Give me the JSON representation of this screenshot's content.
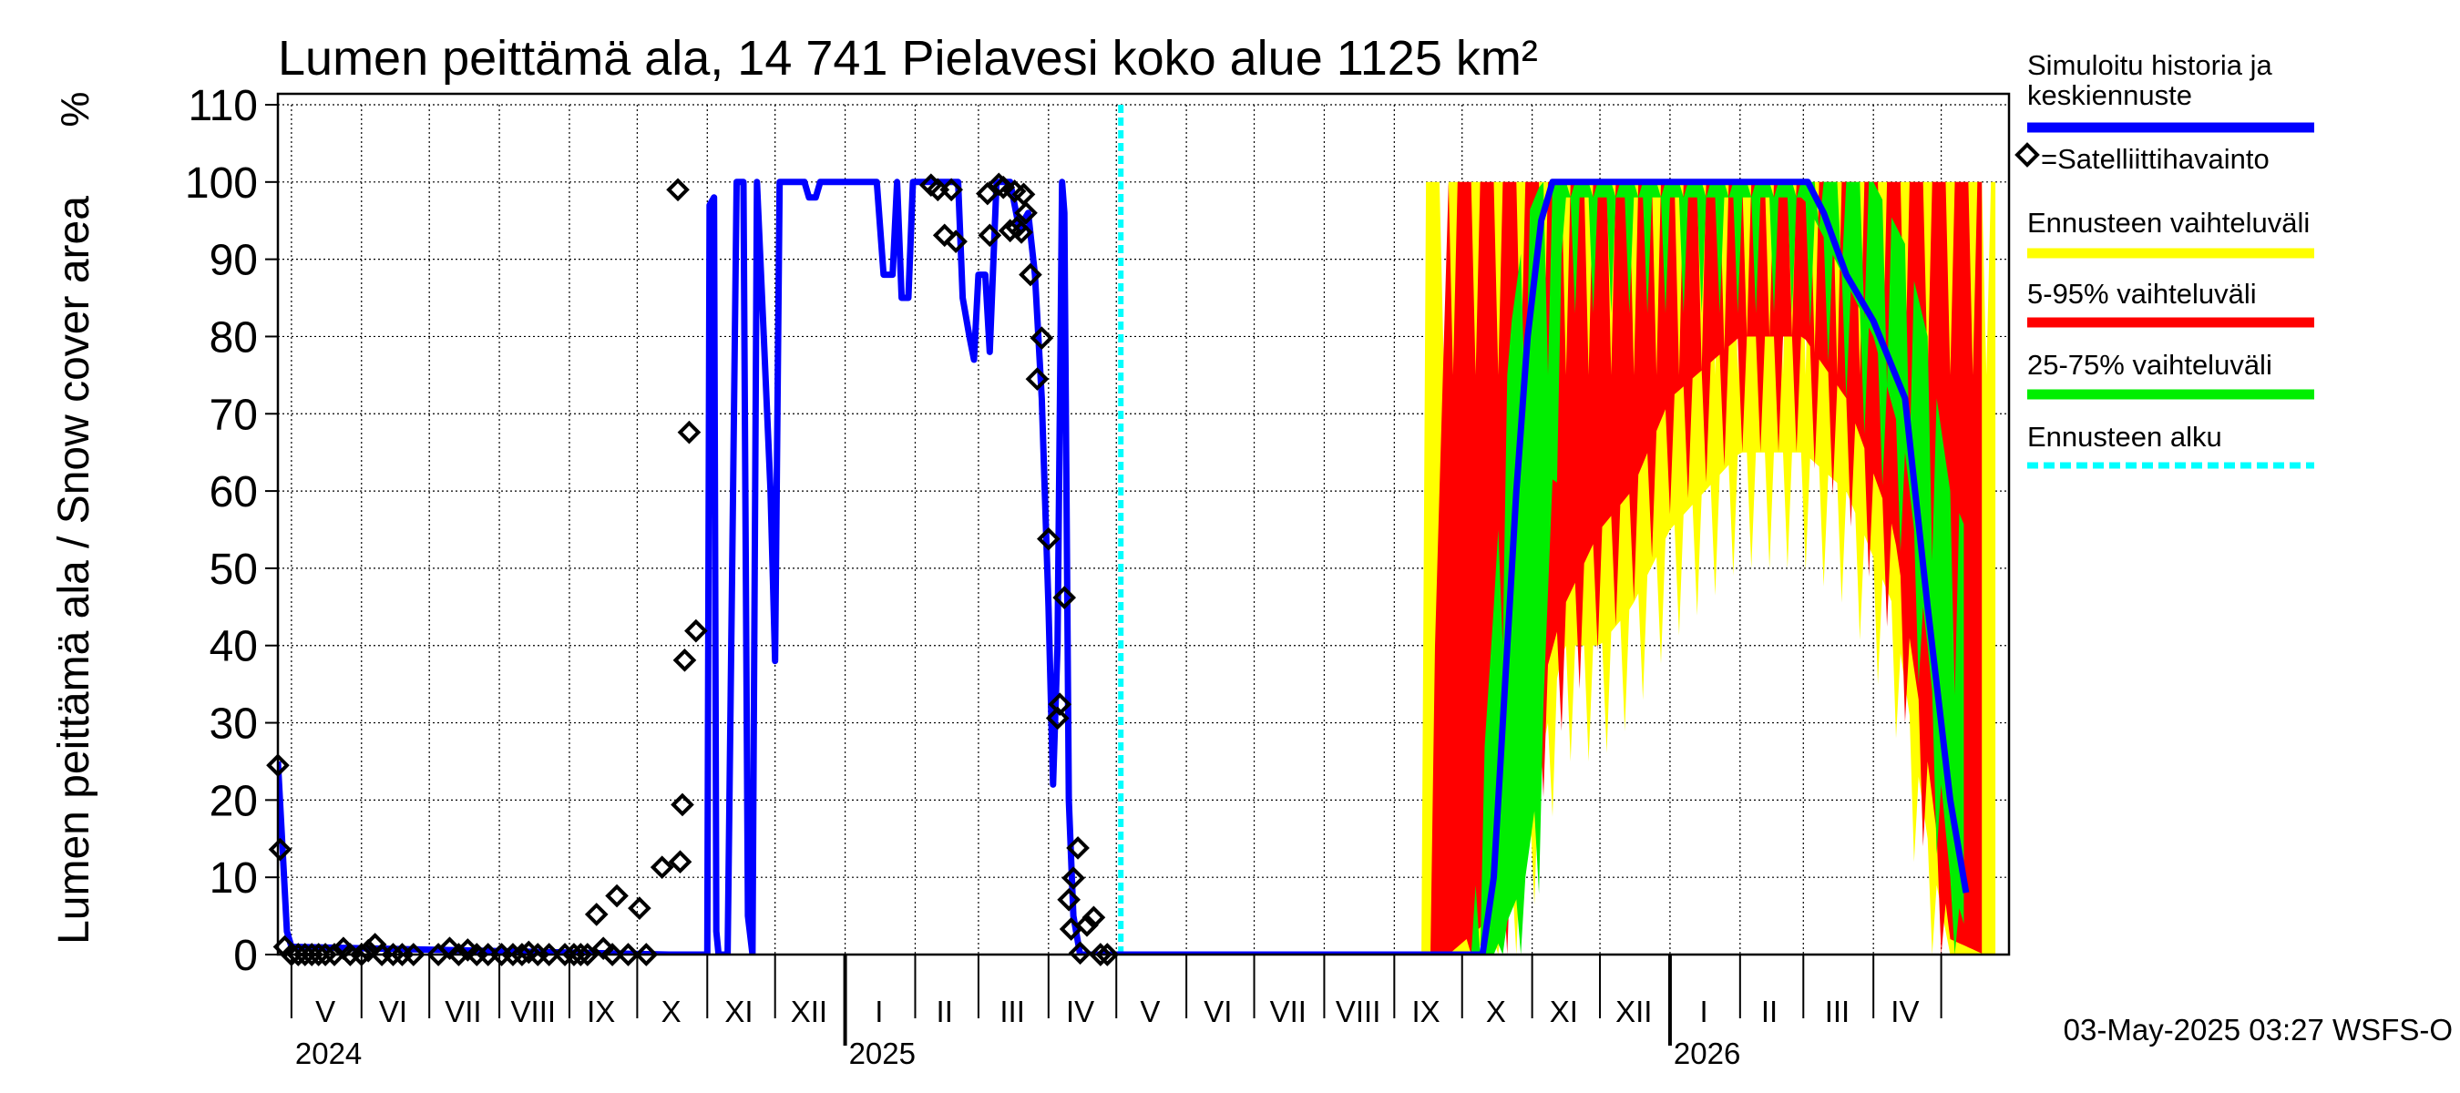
{
  "chart_data": {
    "type": "line",
    "title": "Lumen peittämä ala, 14 741 Pielavesi koko alue 1125 km²",
    "ylabel": "Lumen peittämä ala / Snow cover area",
    "yunit": "%",
    "ylim": [
      0,
      110
    ],
    "yticks": [
      "0",
      "10",
      "20",
      "30",
      "40",
      "50",
      "60",
      "70",
      "80",
      "90",
      "100",
      "110"
    ],
    "xlim": [
      "2024-04-25",
      "2026-05-31"
    ],
    "month_labels": [
      {
        "date": "2024-05-16",
        "label": "V"
      },
      {
        "date": "2024-06-15",
        "label": "VI"
      },
      {
        "date": "2024-07-16",
        "label": "VII"
      },
      {
        "date": "2024-08-16",
        "label": "VIII"
      },
      {
        "date": "2024-09-15",
        "label": "IX"
      },
      {
        "date": "2024-10-16",
        "label": "X"
      },
      {
        "date": "2024-11-15",
        "label": "XI"
      },
      {
        "date": "2024-12-16",
        "label": "XII"
      },
      {
        "date": "2025-01-16",
        "label": "I"
      },
      {
        "date": "2025-02-14",
        "label": "II"
      },
      {
        "date": "2025-03-16",
        "label": "III"
      },
      {
        "date": "2025-04-15",
        "label": "IV"
      },
      {
        "date": "2025-05-16",
        "label": "V"
      },
      {
        "date": "2025-06-15",
        "label": "VI"
      },
      {
        "date": "2025-07-16",
        "label": "VII"
      },
      {
        "date": "2025-08-16",
        "label": "VIII"
      },
      {
        "date": "2025-09-15",
        "label": "IX"
      },
      {
        "date": "2025-10-16",
        "label": "X"
      },
      {
        "date": "2025-11-15",
        "label": "XI"
      },
      {
        "date": "2025-12-16",
        "label": "XII"
      },
      {
        "date": "2026-01-16",
        "label": "I"
      },
      {
        "date": "2026-02-14",
        "label": "II"
      },
      {
        "date": "2026-03-16",
        "label": "III"
      },
      {
        "date": "2026-04-15",
        "label": "IV"
      }
    ],
    "year_labels": [
      {
        "date": "2024-05-01",
        "label": "2024"
      },
      {
        "date": "2025-01-01",
        "label": "2025"
      },
      {
        "date": "2026-01-01",
        "label": "2026"
      }
    ],
    "forecast_start": "2025-05-03",
    "series": [
      {
        "name": "Simuloitu historia ja keskiennuste",
        "color": "#0000ff",
        "points": [
          [
            "2024-04-25",
            25
          ],
          [
            "2024-04-27",
            14
          ],
          [
            "2024-04-29",
            3
          ],
          [
            "2024-05-01",
            1
          ],
          [
            "2024-10-15",
            0
          ],
          [
            "2024-11-01",
            0
          ],
          [
            "2024-11-02",
            97
          ],
          [
            "2024-11-04",
            98
          ],
          [
            "2024-11-05",
            3
          ],
          [
            "2024-11-06",
            0
          ],
          [
            "2024-11-10",
            0
          ],
          [
            "2024-11-12",
            50
          ],
          [
            "2024-11-14",
            100
          ],
          [
            "2024-11-17",
            100
          ],
          [
            "2024-11-19",
            5
          ],
          [
            "2024-11-21",
            0
          ],
          [
            "2024-11-23",
            100
          ],
          [
            "2024-11-26",
            80
          ],
          [
            "2024-11-29",
            60
          ],
          [
            "2024-12-01",
            38
          ],
          [
            "2024-12-03",
            100
          ],
          [
            "2024-12-10",
            100
          ],
          [
            "2024-12-14",
            100
          ],
          [
            "2024-12-16",
            98
          ],
          [
            "2024-12-19",
            98
          ],
          [
            "2024-12-21",
            100
          ],
          [
            "2025-01-15",
            100
          ],
          [
            "2025-01-18",
            88
          ],
          [
            "2025-01-22",
            88
          ],
          [
            "2025-01-24",
            100
          ],
          [
            "2025-01-26",
            85
          ],
          [
            "2025-01-29",
            85
          ],
          [
            "2025-01-31",
            100
          ],
          [
            "2025-02-20",
            100
          ],
          [
            "2025-02-22",
            85
          ],
          [
            "2025-02-25",
            80
          ],
          [
            "2025-02-27",
            77
          ],
          [
            "2025-03-01",
            88
          ],
          [
            "2025-03-04",
            88
          ],
          [
            "2025-03-06",
            78
          ],
          [
            "2025-03-09",
            100
          ],
          [
            "2025-03-15",
            100
          ],
          [
            "2025-03-19",
            94
          ],
          [
            "2025-03-23",
            96
          ],
          [
            "2025-03-26",
            88
          ],
          [
            "2025-03-29",
            72
          ],
          [
            "2025-04-01",
            45
          ],
          [
            "2025-04-03",
            22
          ],
          [
            "2025-04-05",
            40
          ],
          [
            "2025-04-07",
            100
          ],
          [
            "2025-04-08",
            96
          ],
          [
            "2025-04-10",
            20
          ],
          [
            "2025-04-12",
            5
          ],
          [
            "2025-04-15",
            0
          ],
          [
            "2025-04-20",
            0
          ],
          [
            "2025-05-03",
            0
          ],
          [
            "2025-10-01",
            0
          ],
          [
            "2025-10-10",
            0
          ],
          [
            "2025-10-15",
            10
          ],
          [
            "2025-10-20",
            35
          ],
          [
            "2025-10-25",
            60
          ],
          [
            "2025-10-30",
            80
          ],
          [
            "2025-11-05",
            95
          ],
          [
            "2025-11-10",
            100
          ],
          [
            "2026-03-03",
            100
          ],
          [
            "2026-03-10",
            96
          ],
          [
            "2026-03-20",
            88
          ],
          [
            "2026-04-01",
            82
          ],
          [
            "2026-04-15",
            72
          ],
          [
            "2026-04-25",
            45
          ],
          [
            "2026-05-05",
            20
          ],
          [
            "2026-05-12",
            8
          ]
        ]
      }
    ],
    "bands": [
      {
        "name": "Ennusteen vaihteluväli",
        "color": "#ffff00",
        "points": [
          [
            "2025-09-13",
            0,
            0
          ],
          [
            "2025-09-15",
            0,
            100
          ],
          [
            "2025-10-01",
            0,
            100
          ],
          [
            "2025-10-15",
            2,
            100
          ],
          [
            "2025-11-01",
            20,
            100
          ],
          [
            "2025-11-15",
            40,
            100
          ],
          [
            "2025-12-01",
            40,
            100
          ],
          [
            "2025-12-15",
            45,
            100
          ],
          [
            "2026-01-01",
            55,
            100
          ],
          [
            "2026-02-01",
            65,
            100
          ],
          [
            "2026-03-01",
            65,
            100
          ],
          [
            "2026-03-20",
            60,
            100
          ],
          [
            "2026-04-10",
            45,
            100
          ],
          [
            "2026-04-25",
            15,
            100
          ],
          [
            "2026-05-05",
            0,
            100
          ],
          [
            "2026-05-25",
            0,
            100
          ]
        ]
      },
      {
        "name": "5-95% vaihteluväli",
        "color": "#ff0000",
        "points": [
          [
            "2025-09-15",
            0,
            0
          ],
          [
            "2025-09-25",
            0,
            100
          ],
          [
            "2025-10-15",
            5,
            100
          ],
          [
            "2025-11-01",
            30,
            100
          ],
          [
            "2025-11-15",
            45,
            100
          ],
          [
            "2025-12-01",
            55,
            100
          ],
          [
            "2025-12-15",
            60,
            100
          ],
          [
            "2026-01-01",
            72,
            100
          ],
          [
            "2026-02-01",
            80,
            100
          ],
          [
            "2026-03-01",
            80,
            100
          ],
          [
            "2026-03-20",
            72,
            100
          ],
          [
            "2026-04-10",
            55,
            100
          ],
          [
            "2026-04-25",
            25,
            100
          ],
          [
            "2026-05-05",
            2,
            100
          ],
          [
            "2026-05-20",
            0,
            100
          ]
        ]
      },
      {
        "name": "25-75% vaihteluväli",
        "color": "#00ee00",
        "points": [
          [
            "2025-10-05",
            0,
            0
          ],
          [
            "2025-10-15",
            0,
            45
          ],
          [
            "2025-10-22",
            5,
            80
          ],
          [
            "2025-10-29",
            10,
            95
          ],
          [
            "2025-11-05",
            25,
            100
          ],
          [
            "2025-11-15",
            98,
            100
          ],
          [
            "2026-03-01",
            98,
            100
          ],
          [
            "2026-03-15",
            90,
            100
          ],
          [
            "2026-04-01",
            80,
            100
          ],
          [
            "2026-04-15",
            65,
            92
          ],
          [
            "2026-04-25",
            40,
            80
          ],
          [
            "2026-05-05",
            10,
            60
          ],
          [
            "2026-05-12",
            3,
            55
          ]
        ]
      }
    ],
    "observations": {
      "name": "=Satelliittihavainto",
      "points": [
        [
          "2024-04-25",
          24.5
        ],
        [
          "2024-04-26",
          13.6
        ],
        [
          "2024-04-28",
          1
        ],
        [
          "2024-05-01",
          0
        ],
        [
          "2024-05-04",
          0
        ],
        [
          "2024-05-07",
          0
        ],
        [
          "2024-05-10",
          0
        ],
        [
          "2024-05-13",
          0
        ],
        [
          "2024-05-16",
          0
        ],
        [
          "2024-05-20",
          0
        ],
        [
          "2024-05-24",
          0.8
        ],
        [
          "2024-05-27",
          0
        ],
        [
          "2024-06-01",
          0
        ],
        [
          "2024-06-04",
          0.5
        ],
        [
          "2024-06-07",
          1.3
        ],
        [
          "2024-06-10",
          0
        ],
        [
          "2024-06-15",
          0
        ],
        [
          "2024-06-19",
          0
        ],
        [
          "2024-06-24",
          0
        ],
        [
          "2024-07-05",
          0
        ],
        [
          "2024-07-10",
          0.8
        ],
        [
          "2024-07-14",
          0
        ],
        [
          "2024-07-18",
          0.6
        ],
        [
          "2024-07-22",
          0
        ],
        [
          "2024-07-27",
          0
        ],
        [
          "2024-08-02",
          0
        ],
        [
          "2024-08-07",
          0
        ],
        [
          "2024-08-11",
          0
        ],
        [
          "2024-08-14",
          0.3
        ],
        [
          "2024-08-18",
          0
        ],
        [
          "2024-08-23",
          0
        ],
        [
          "2024-08-30",
          0
        ],
        [
          "2024-09-03",
          0
        ],
        [
          "2024-09-06",
          0
        ],
        [
          "2024-09-09",
          0
        ],
        [
          "2024-09-13",
          5.2
        ],
        [
          "2024-09-16",
          0.8
        ],
        [
          "2024-09-20",
          0
        ],
        [
          "2024-09-22",
          7.6
        ],
        [
          "2024-09-27",
          0
        ],
        [
          "2024-10-02",
          6
        ],
        [
          "2024-10-05",
          0
        ],
        [
          "2024-10-12",
          11.3
        ],
        [
          "2024-10-19",
          99
        ],
        [
          "2024-10-20",
          12
        ],
        [
          "2024-10-21",
          19.4
        ],
        [
          "2024-10-22",
          38.1
        ],
        [
          "2024-10-24",
          67.6
        ],
        [
          "2024-10-27",
          41.9
        ],
        [
          "2025-02-08",
          99.6
        ],
        [
          "2025-02-11",
          99
        ],
        [
          "2025-02-14",
          93.1
        ],
        [
          "2025-02-17",
          99
        ],
        [
          "2025-02-19",
          92.3
        ],
        [
          "2025-03-05",
          98.5
        ],
        [
          "2025-03-06",
          93.1
        ],
        [
          "2025-03-10",
          99.7
        ],
        [
          "2025-03-12",
          99.3
        ],
        [
          "2025-03-15",
          93.7
        ],
        [
          "2025-03-17",
          98.8
        ],
        [
          "2025-03-18",
          94.1
        ],
        [
          "2025-03-20",
          93.5
        ],
        [
          "2025-03-21",
          98.4
        ],
        [
          "2025-03-22",
          96
        ],
        [
          "2025-03-24",
          88
        ],
        [
          "2025-03-27",
          74.5
        ],
        [
          "2025-03-29",
          79.8
        ],
        [
          "2025-04-01",
          53.8
        ],
        [
          "2025-04-05",
          30.6
        ],
        [
          "2025-04-06",
          32.4
        ],
        [
          "2025-04-08",
          46.2
        ],
        [
          "2025-04-10",
          7.1
        ],
        [
          "2025-04-11",
          3.3
        ],
        [
          "2025-04-12",
          9.9
        ],
        [
          "2025-04-14",
          13.8
        ],
        [
          "2025-04-15",
          0.2
        ],
        [
          "2025-04-18",
          3.8
        ],
        [
          "2025-04-21",
          4.8
        ],
        [
          "2025-04-24",
          0
        ],
        [
          "2025-04-27",
          0
        ]
      ]
    },
    "legend": [
      {
        "label": "Simuloitu historia ja keskiennuste",
        "color": "#0000ff",
        "kind": "line"
      },
      {
        "label": "=Satelliittihavainto",
        "color": "#000000",
        "kind": "marker"
      },
      {
        "label": "Ennusteen vaihteluväli",
        "color": "#ffff00",
        "kind": "line"
      },
      {
        "label": "5-95% vaihteluväli",
        "color": "#ff0000",
        "kind": "line"
      },
      {
        "label": "25-75% vaihteluväli",
        "color": "#00ee00",
        "kind": "line"
      },
      {
        "label": "Ennusteen alku",
        "color": "#00ffff",
        "kind": "dashed"
      }
    ],
    "legend_position": "right",
    "grid": true,
    "footer": "03-May-2025 03:27 WSFS-O"
  }
}
